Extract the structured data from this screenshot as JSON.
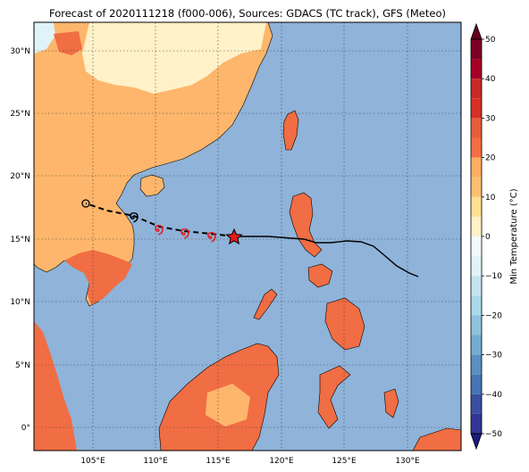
{
  "title": "Forecast of 2020111218 (f000-006), Sources: GDACS (TC track), GFS (Meteo)",
  "map": {
    "lon_ticks": [
      "105°E",
      "110°E",
      "115°E",
      "120°E",
      "125°E",
      "130°E"
    ],
    "lat_ticks": [
      "30°N",
      "25°N",
      "20°N",
      "15°N",
      "10°N",
      "5°N",
      "0°"
    ],
    "colors": {
      "ocean": "#8fb3d9",
      "land_cool": "#fdeec8",
      "land_warm": "#fdb66b",
      "land_hot": "#f16d43",
      "land_cold": "#e0f3f8",
      "track": "#000000",
      "forecast_symbol": "#e41a1c"
    },
    "storm": {
      "past_track_style": "solid",
      "forecast_track_style": "dashed",
      "current_position_marker": "star",
      "current_position": {
        "lon": 116.3,
        "lat": 15.2
      }
    }
  },
  "colorbar": {
    "label": "Min Temperature (°C)",
    "ticks": [
      "50",
      "40",
      "30",
      "20",
      "10",
      "0",
      "−10",
      "−20",
      "−30",
      "−40",
      "−50"
    ],
    "levels": [
      {
        "from": 45,
        "to": 50,
        "color": "#7b0025"
      },
      {
        "from": 40,
        "to": 45,
        "color": "#a50026"
      },
      {
        "from": 35,
        "to": 40,
        "color": "#c62a27"
      },
      {
        "from": 30,
        "to": 35,
        "color": "#d73027"
      },
      {
        "from": 25,
        "to": 30,
        "color": "#e85d3a"
      },
      {
        "from": 20,
        "to": 25,
        "color": "#f46d43"
      },
      {
        "from": 15,
        "to": 20,
        "color": "#fdae61"
      },
      {
        "from": 10,
        "to": 15,
        "color": "#fdbf6f"
      },
      {
        "from": 5,
        "to": 10,
        "color": "#fee090"
      },
      {
        "from": 0,
        "to": 5,
        "color": "#fff1c8"
      },
      {
        "from": -5,
        "to": 0,
        "color": "#f2fafc"
      },
      {
        "from": -10,
        "to": -5,
        "color": "#e0f3f8"
      },
      {
        "from": -15,
        "to": -10,
        "color": "#c4e3ef"
      },
      {
        "from": -20,
        "to": -15,
        "color": "#abd9e9"
      },
      {
        "from": -25,
        "to": -20,
        "color": "#8fc3dd"
      },
      {
        "from": -30,
        "to": -25,
        "color": "#74add1"
      },
      {
        "from": -35,
        "to": -30,
        "color": "#5a8fc2"
      },
      {
        "from": -40,
        "to": -35,
        "color": "#4575b4"
      },
      {
        "from": -45,
        "to": -40,
        "color": "#3a4fa0"
      },
      {
        "from": -50,
        "to": -45,
        "color": "#313695"
      }
    ]
  }
}
